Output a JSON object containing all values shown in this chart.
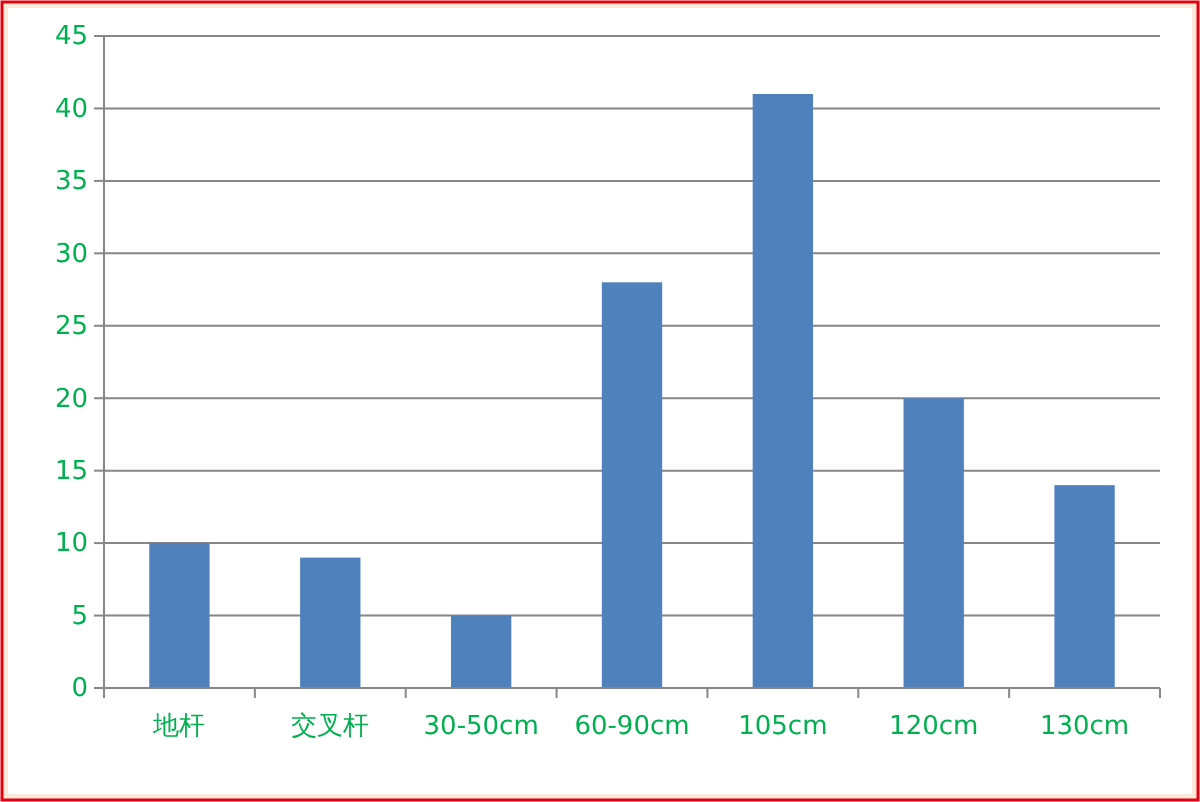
{
  "chart_data": {
    "type": "bar",
    "categories": [
      "地杆",
      "交叉杆",
      "30-50cm",
      "60-90cm",
      "105cm",
      "120cm",
      "130cm"
    ],
    "values": [
      10,
      9,
      5,
      28,
      41,
      20,
      14
    ],
    "color": "#4f81bd",
    "ylim": [
      0,
      45
    ],
    "yticks": [
      0,
      5,
      10,
      15,
      20,
      25,
      30,
      35,
      40,
      45
    ],
    "grid": "y"
  }
}
